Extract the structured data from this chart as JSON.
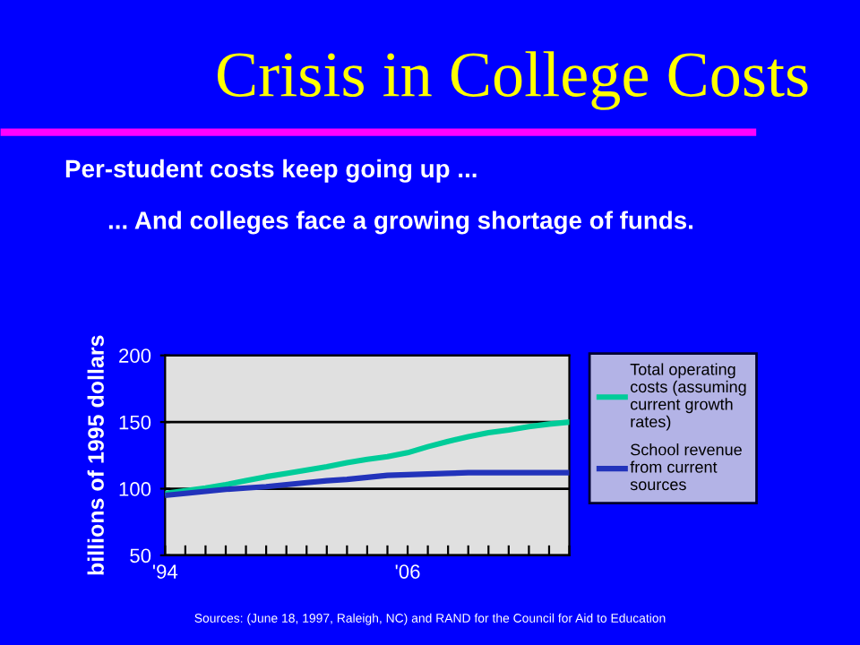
{
  "chart_data": {
    "type": "line",
    "title": "Crisis in College Costs",
    "subtitle": "Per-student costs keep going up ...",
    "annotations": [
      "... And colleges face a growing shortage of funds.",
      "Sources: (June 18, 1997, Raleigh, NC) and RAND for the Council for Aid to Education"
    ],
    "ylabel": "billions of 1995 dollars",
    "x": [
      1994,
      1995,
      1996,
      1997,
      1998,
      1999,
      2000,
      2001,
      2002,
      2003,
      2004,
      2005,
      2006,
      2007,
      2008,
      2009,
      2010,
      2011,
      2012,
      2013,
      2014
    ],
    "series": [
      {
        "name": "Total operating\ncosts (assuming\ncurrent growth\nrates)",
        "color": "#00cc99",
        "values": [
          96.5,
          98.5,
          100.5,
          103,
          106,
          109,
          111.5,
          114,
          116.5,
          119.5,
          122,
          124,
          127,
          131.5,
          135.5,
          139,
          142,
          144,
          146.5,
          148.5,
          150
        ]
      },
      {
        "name": "School revenue\nfrom current\nsources",
        "color": "#2233bb",
        "values": [
          95,
          96.5,
          98,
          99.5,
          100.5,
          101.5,
          103,
          104.5,
          106,
          107,
          108.5,
          110,
          110.5,
          111,
          111.5,
          112,
          112,
          112,
          112,
          112,
          112
        ]
      }
    ],
    "xlim": [
      1994,
      2014
    ],
    "xticks": [
      {
        "value": 1994,
        "label": "'94"
      },
      {
        "value": 1995,
        "label": null
      },
      {
        "value": 1996,
        "label": null
      },
      {
        "value": 1997,
        "label": null
      },
      {
        "value": 1998,
        "label": null
      },
      {
        "value": 1999,
        "label": null
      },
      {
        "value": 2000,
        "label": null
      },
      {
        "value": 2001,
        "label": null
      },
      {
        "value": 2002,
        "label": null
      },
      {
        "value": 2003,
        "label": null
      },
      {
        "value": 2004,
        "label": null
      },
      {
        "value": 2005,
        "label": null
      },
      {
        "value": 2006,
        "label": "'06"
      },
      {
        "value": 2007,
        "label": null
      },
      {
        "value": 2008,
        "label": null
      },
      {
        "value": 2009,
        "label": null
      },
      {
        "value": 2010,
        "label": null
      },
      {
        "value": 2011,
        "label": null
      },
      {
        "value": 2012,
        "label": null
      },
      {
        "value": 2013,
        "label": null
      },
      {
        "value": 2014,
        "label": null
      }
    ],
    "ylim": [
      50,
      200
    ],
    "yticks": [
      50,
      100,
      150,
      200
    ],
    "grid": "y",
    "legend": "right",
    "line_style": "solid",
    "marker": "none"
  }
}
